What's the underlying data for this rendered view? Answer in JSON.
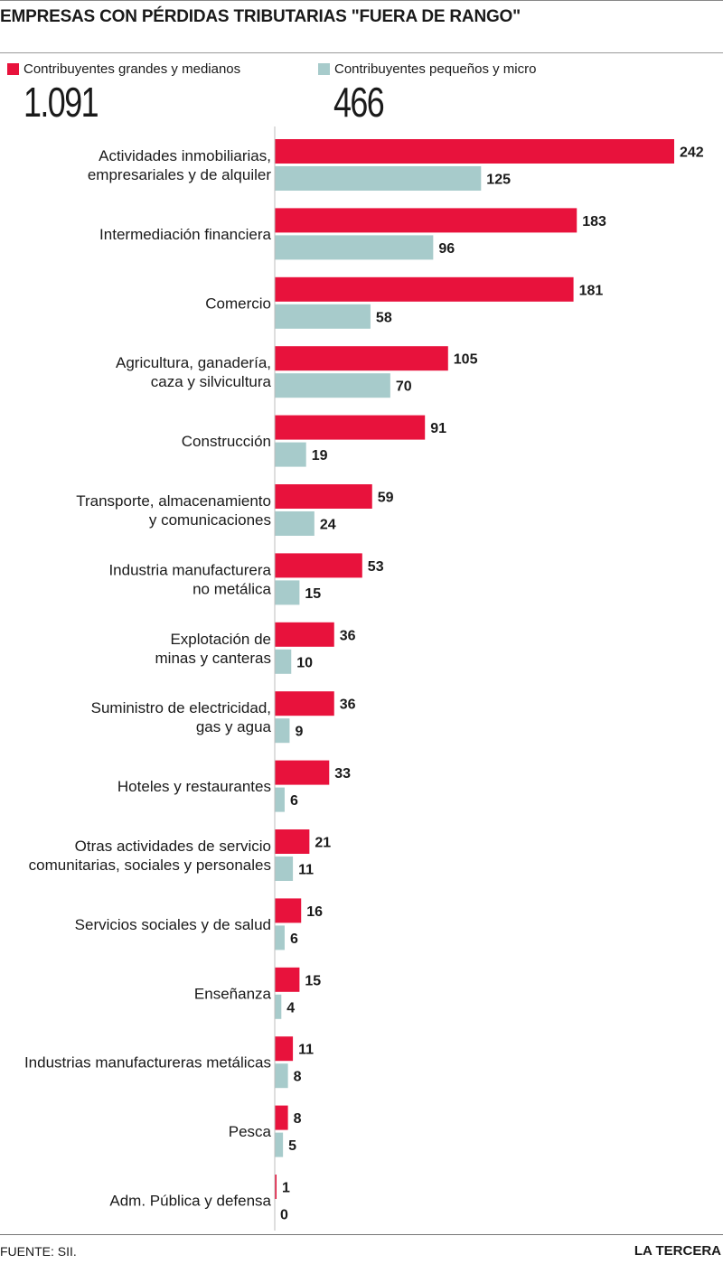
{
  "title": "EMPRESAS CON PÉRDIDAS TRIBUTARIAS \"FUERA DE RANGO\"",
  "legend": [
    {
      "label": "Contribuyentes grandes y medianos",
      "total": "1.091",
      "color": "#e8123c"
    },
    {
      "label": "Contribuyentes pequeños y micro",
      "total": "466",
      "color": "#a7cbcb"
    }
  ],
  "footer": {
    "source": "FUENTE: SII.",
    "brand": "LA TERCERA"
  },
  "chart_data": {
    "type": "bar",
    "orientation": "horizontal",
    "categories": [
      [
        "Actividades inmobiliarias,",
        "empresariales y de alquiler"
      ],
      [
        "Intermediación financiera"
      ],
      [
        "Comercio"
      ],
      [
        "Agricultura, ganadería,",
        "caza y silvicultura"
      ],
      [
        "Construcción"
      ],
      [
        "Transporte, almacenamiento",
        "y comunicaciones"
      ],
      [
        "Industria manufacturera",
        "no metálica"
      ],
      [
        "Explotación de",
        "minas y canteras"
      ],
      [
        "Suministro de electricidad,",
        "gas y agua"
      ],
      [
        "Hoteles y restaurantes"
      ],
      [
        "Otras actividades de servicio",
        "comunitarias, sociales y personales"
      ],
      [
        "Servicios sociales y de salud"
      ],
      [
        "Enseñanza"
      ],
      [
        "Industrias manufactureras metálicas"
      ],
      [
        "Pesca"
      ],
      [
        "Adm. Pública y defensa"
      ]
    ],
    "series": [
      {
        "name": "Contribuyentes grandes y medianos",
        "color": "#e8123c",
        "values": [
          242,
          183,
          181,
          105,
          91,
          59,
          53,
          36,
          36,
          33,
          21,
          16,
          15,
          11,
          8,
          1
        ]
      },
      {
        "name": "Contribuyentes pequeños y micro",
        "color": "#a7cbcb",
        "values": [
          125,
          96,
          58,
          70,
          19,
          24,
          15,
          10,
          9,
          6,
          11,
          6,
          4,
          8,
          5,
          0
        ]
      }
    ],
    "xlim": [
      0,
      242
    ],
    "grid": false
  }
}
